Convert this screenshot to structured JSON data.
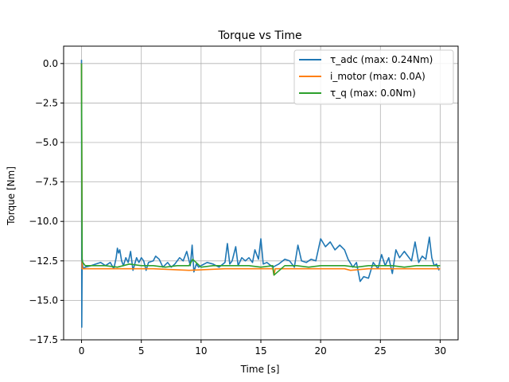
{
  "chart_data": {
    "type": "line",
    "title": "Torque vs Time",
    "xlabel": "Time [s]",
    "ylabel": "Torque [Nm]",
    "xlim": [
      -1.5,
      31.5
    ],
    "ylim": [
      -17.5,
      1.1
    ],
    "xticks": [
      0,
      5,
      10,
      15,
      20,
      25,
      30
    ],
    "xtick_labels": [
      "0",
      "5",
      "10",
      "15",
      "20",
      "25",
      "30"
    ],
    "yticks": [
      0.0,
      -2.5,
      -5.0,
      -7.5,
      -10.0,
      -12.5,
      -15.0,
      -17.5
    ],
    "ytick_labels": [
      "0.0",
      "−2.5",
      "−5.0",
      "−7.5",
      "−10.0",
      "−12.5",
      "−15.0",
      "−17.5"
    ],
    "grid": true,
    "legend_position": "top-right",
    "series": [
      {
        "name": "τ_adc (max: 0.24Nm)",
        "color": "#1f77b4",
        "x": [
          0,
          0.02,
          0.05,
          0.1,
          0.15,
          0.3,
          0.8,
          1.2,
          1.6,
          2.0,
          2.4,
          2.7,
          2.9,
          3.0,
          3.1,
          3.2,
          3.35,
          3.5,
          3.7,
          3.9,
          4.1,
          4.3,
          4.6,
          4.8,
          5.0,
          5.2,
          5.4,
          5.6,
          6.0,
          6.2,
          6.5,
          6.8,
          7.2,
          7.5,
          7.8,
          8.2,
          8.5,
          8.8,
          9.1,
          9.25,
          9.4,
          9.6,
          9.8,
          10.0,
          10.5,
          11.0,
          11.5,
          12.0,
          12.2,
          12.4,
          12.6,
          12.9,
          13.1,
          13.4,
          13.7,
          14.0,
          14.3,
          14.5,
          14.8,
          15.0,
          15.2,
          15.5,
          16.0,
          16.5,
          17.0,
          17.4,
          17.8,
          18.1,
          18.4,
          18.8,
          19.2,
          19.6,
          20.0,
          20.4,
          20.8,
          21.2,
          21.6,
          22.0,
          22.3,
          22.7,
          23.0,
          23.3,
          23.6,
          24.0,
          24.4,
          24.8,
          25.1,
          25.4,
          25.7,
          26.0,
          26.3,
          26.6,
          27.0,
          27.3,
          27.6,
          27.9,
          28.2,
          28.5,
          28.8,
          29.1,
          29.3,
          29.5,
          29.7,
          29.9
        ],
        "y": [
          0.24,
          -16.7,
          -12.4,
          -12.8,
          -13.0,
          -12.9,
          -12.8,
          -12.7,
          -12.6,
          -12.8,
          -12.6,
          -13.0,
          -12.3,
          -11.7,
          -12.0,
          -11.8,
          -12.5,
          -12.8,
          -12.3,
          -12.6,
          -11.9,
          -13.1,
          -12.3,
          -12.6,
          -12.3,
          -12.5,
          -13.1,
          -12.6,
          -12.5,
          -12.2,
          -12.4,
          -12.9,
          -12.6,
          -12.9,
          -12.7,
          -12.3,
          -12.5,
          -11.9,
          -12.8,
          -11.5,
          -13.2,
          -12.7,
          -12.9,
          -12.8,
          -12.6,
          -12.7,
          -12.9,
          -12.6,
          -11.4,
          -12.7,
          -12.5,
          -11.6,
          -12.8,
          -12.3,
          -12.5,
          -12.3,
          -12.6,
          -11.8,
          -12.4,
          -11.1,
          -12.7,
          -12.6,
          -12.9,
          -12.7,
          -12.4,
          -12.5,
          -12.9,
          -11.5,
          -12.5,
          -12.6,
          -12.4,
          -12.5,
          -11.1,
          -11.6,
          -11.3,
          -11.8,
          -11.5,
          -11.8,
          -12.4,
          -12.9,
          -12.6,
          -13.8,
          -13.5,
          -13.6,
          -12.6,
          -13.0,
          -12.1,
          -12.8,
          -12.3,
          -13.3,
          -11.8,
          -12.3,
          -11.9,
          -12.2,
          -12.5,
          -11.3,
          -12.6,
          -12.2,
          -12.4,
          -11.0,
          -12.3,
          -12.8,
          -12.7,
          -13.1
        ]
      },
      {
        "name": "i_motor (max: 0.0A)",
        "color": "#ff7f0e",
        "x": [
          0,
          0.05,
          0.2,
          3.0,
          6.0,
          9.0,
          12.0,
          15.0,
          16.0,
          16.1,
          16.2,
          18.0,
          21.0,
          22.0,
          22.5,
          24.0,
          26.0,
          28.0,
          30.0
        ],
        "y": [
          0.0,
          -13.0,
          -13.0,
          -13.0,
          -13.0,
          -13.1,
          -13.0,
          -13.0,
          -13.0,
          -13.4,
          -13.0,
          -13.0,
          -13.0,
          -13.0,
          -13.1,
          -13.0,
          -13.0,
          -13.0,
          -13.0
        ]
      },
      {
        "name": "τ_q (max: 0.0Nm)",
        "color": "#2ca02c",
        "x": [
          0,
          0.05,
          0.1,
          0.3,
          1.0,
          2.0,
          3.0,
          4.0,
          5.0,
          6.0,
          7.0,
          8.0,
          9.0,
          9.3,
          10.0,
          11.0,
          12.0,
          13.0,
          14.0,
          15.0,
          16.0,
          16.1,
          17.0,
          18.0,
          19.0,
          20.0,
          21.0,
          22.0,
          23.0,
          24.0,
          25.0,
          26.0,
          27.0,
          28.0,
          29.0,
          30.0
        ],
        "y": [
          0.0,
          -12.4,
          -12.6,
          -12.8,
          -12.8,
          -12.8,
          -12.9,
          -12.7,
          -12.8,
          -12.8,
          -12.9,
          -12.8,
          -12.8,
          -12.4,
          -12.9,
          -12.8,
          -12.8,
          -12.8,
          -12.8,
          -12.9,
          -12.8,
          -13.4,
          -12.8,
          -12.8,
          -12.9,
          -12.8,
          -12.8,
          -12.8,
          -12.9,
          -12.8,
          -12.8,
          -12.8,
          -12.9,
          -12.8,
          -12.8,
          -12.8
        ]
      }
    ]
  }
}
